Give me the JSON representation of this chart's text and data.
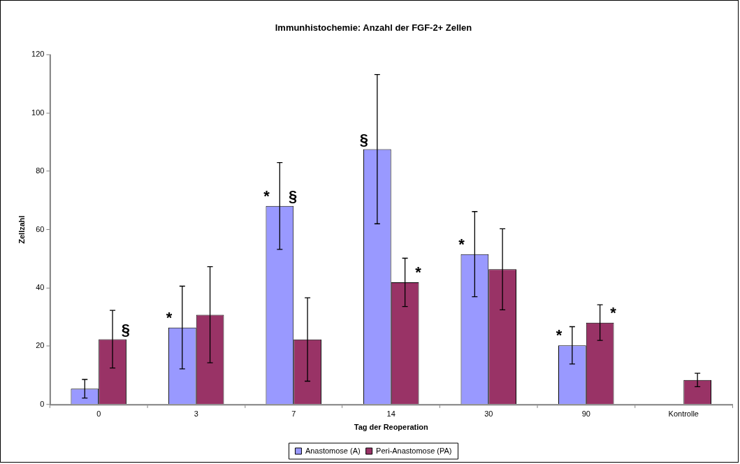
{
  "chart_data": {
    "type": "bar",
    "title": "Immunhistochemie: Anzahl der FGF-2+ Zellen",
    "xlabel": "Tag der Reoperation",
    "ylabel": "Zellzahl",
    "categories": [
      "0",
      "3",
      "7",
      "14",
      "30",
      "90",
      "Kontrolle"
    ],
    "series": [
      {
        "name": "Anastomose (A)",
        "color": "#9999ff",
        "values": [
          5.4,
          26.4,
          68.1,
          87.6,
          51.6,
          20.3,
          null
        ],
        "errors": [
          3.2,
          14.2,
          14.9,
          25.6,
          14.6,
          6.4,
          null
        ]
      },
      {
        "name": "Peri-Anastomose (PA)",
        "color": "#993366",
        "values": [
          22.4,
          30.8,
          22.3,
          41.9,
          46.4,
          28.1,
          8.4
        ],
        "errors": [
          9.9,
          16.5,
          14.3,
          8.3,
          13.9,
          6.1,
          2.3
        ]
      }
    ],
    "ylim": [
      0,
      120
    ],
    "yticks": [
      0,
      20,
      40,
      60,
      80,
      100,
      120
    ],
    "grid": false,
    "legend": "bottom",
    "annotations": [
      {
        "text": "§",
        "x": "0",
        "y": 22.4
      },
      {
        "text": "*",
        "x": "3",
        "y": 26.4
      },
      {
        "text": "*",
        "x": "7",
        "y": 68.1
      },
      {
        "text": "§",
        "x": "7",
        "y": 68.1
      },
      {
        "text": "§",
        "x": "14",
        "y": 87.6
      },
      {
        "text": "*",
        "x": "14",
        "y": 41.9
      },
      {
        "text": "*",
        "x": "30",
        "y": 51.6
      },
      {
        "text": "*",
        "x": "90",
        "y": 20.3
      },
      {
        "text": "*",
        "x": "90",
        "y": 28.1
      }
    ]
  }
}
